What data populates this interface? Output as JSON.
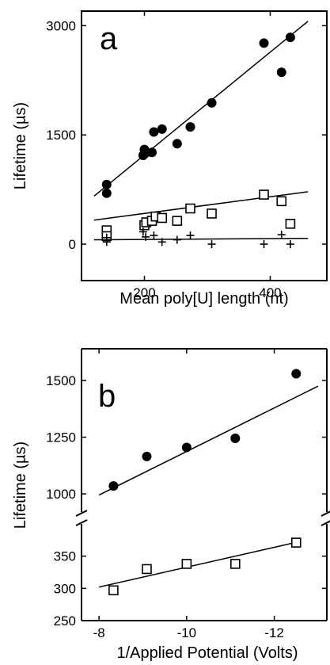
{
  "chart_data": [
    {
      "type": "scatter",
      "panel_label": "a",
      "xlabel": "Mean poly[U] length (nt)",
      "ylabel": "Lifetime (µs)",
      "xlim": [
        100,
        490
      ],
      "ylim": [
        -500,
        3200
      ],
      "xticks": [
        200,
        400
      ],
      "xtick_labels": [
        "200",
        "400"
      ],
      "yticks": [
        0,
        1500,
        3000
      ],
      "ytick_labels": [
        "0",
        "1500",
        "3000"
      ],
      "grid": false,
      "series": [
        {
          "marker": "filled-circle",
          "x": [
            140,
            140,
            198,
            200,
            202,
            212,
            215,
            228,
            252,
            273,
            307,
            390,
            418,
            432
          ],
          "y": [
            820,
            700,
            1220,
            1300,
            1250,
            1260,
            1540,
            1580,
            1380,
            1610,
            1940,
            2760,
            2360,
            2840
          ],
          "fit": [
            [
              120,
              660
            ],
            [
              460,
              3060
            ]
          ]
        },
        {
          "marker": "open-square",
          "x": [
            140,
            140,
            200,
            203,
            212,
            218,
            228,
            252,
            273,
            307,
            390,
            418,
            432
          ],
          "y": [
            190,
            110,
            260,
            300,
            320,
            380,
            360,
            320,
            490,
            420,
            680,
            590,
            280
          ],
          "fit": [
            [
              120,
              330
            ],
            [
              460,
              720
            ]
          ]
        },
        {
          "marker": "plus",
          "x": [
            140,
            140,
            198,
            202,
            215,
            228,
            252,
            273,
            307,
            390,
            418,
            432
          ],
          "y": [
            90,
            30,
            170,
            100,
            120,
            30,
            60,
            120,
            0,
            0,
            130,
            0
          ],
          "fit": [
            [
              120,
              60
            ],
            [
              460,
              80
            ]
          ]
        }
      ]
    },
    {
      "type": "scatter",
      "panel_label": "b",
      "xlabel": "1/Applied Potential (Volts)",
      "ylabel": "Lifetime (µs)",
      "xlim": [
        -7.6,
        -13.2
      ],
      "xticks": [
        -8,
        -10,
        -12
      ],
      "xtick_labels": [
        "-8",
        "-10",
        "-12"
      ],
      "axis_break": true,
      "y_upper": {
        "ylim": [
          920,
          1640
        ],
        "yticks": [
          1000,
          1250,
          1500
        ],
        "ytick_labels": [
          "1000",
          "1250",
          "1500"
        ]
      },
      "y_lower": {
        "ylim": [
          250,
          400
        ],
        "yticks": [
          250,
          300,
          350
        ],
        "ytick_labels": [
          "250",
          "300",
          "350"
        ]
      },
      "grid": false,
      "series": [
        {
          "marker": "filled-circle",
          "x": [
            -8.33,
            -9.09,
            -10.0,
            -11.11,
            -12.5
          ],
          "y": [
            1035,
            1165,
            1205,
            1245,
            1530
          ],
          "fit": [
            [
              -8.0,
              995
            ],
            [
              -13.0,
              1475
            ]
          ]
        },
        {
          "marker": "open-square",
          "x": [
            -8.33,
            -9.09,
            -10.0,
            -11.11,
            -12.5
          ],
          "y": [
            297,
            330,
            338,
            338,
            371
          ],
          "fit": [
            [
              -8.0,
              302
            ],
            [
              -12.6,
              373
            ]
          ]
        }
      ]
    }
  ]
}
